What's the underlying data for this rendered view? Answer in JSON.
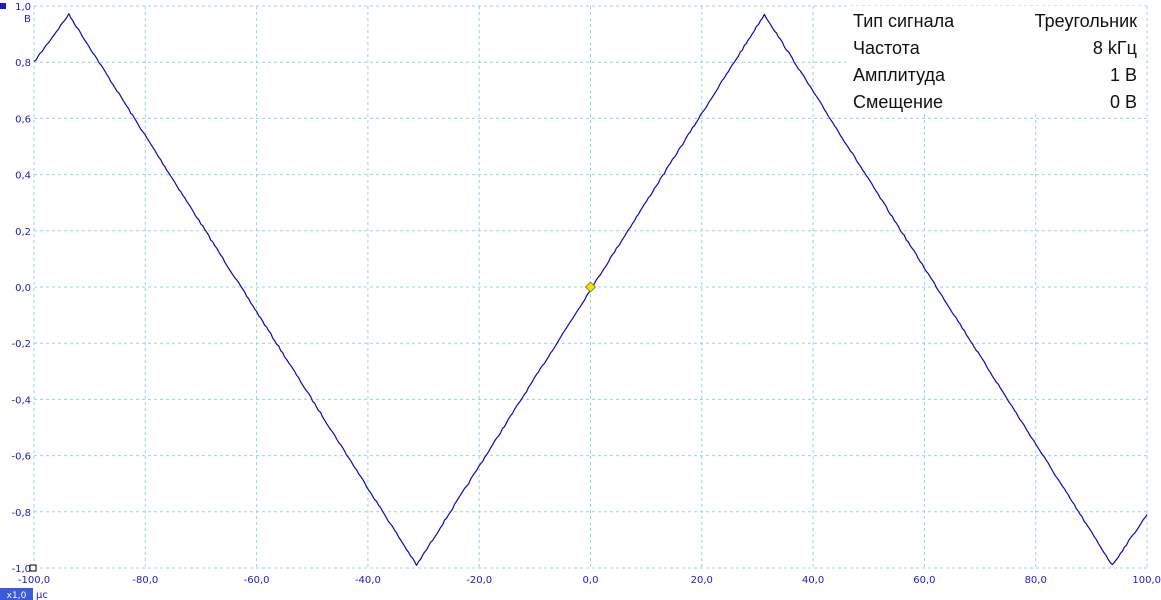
{
  "chart_data": {
    "type": "line",
    "title": "",
    "xlabel": "",
    "ylabel": "",
    "x_unit": "µс",
    "y_unit": "В",
    "xlim": [
      -100,
      100
    ],
    "ylim": [
      -1,
      1
    ],
    "x_ticks": [
      "-100,0",
      "-80,0",
      "-60,0",
      "-40,0",
      "-20,0",
      "0,0",
      "20,0",
      "40,0",
      "60,0",
      "80,0",
      "100,0"
    ],
    "y_ticks": [
      "1,0",
      "0,8",
      "0,6",
      "0,4",
      "0,2",
      "0,0",
      "-0,2",
      "-0,4",
      "-0,6",
      "-0,8",
      "-1,0"
    ],
    "grid": true,
    "series": [
      {
        "x": [
          -100,
          -93.75,
          -31.25,
          31.25,
          93.75,
          100
        ],
        "y": [
          0.8,
          0.97,
          -0.99,
          0.97,
          -0.99,
          -0.81
        ],
        "color": "#0a0ab4"
      }
    ],
    "trigger_marker": {
      "x": 0,
      "y": 0,
      "color": "#f2e600"
    },
    "zoom_badge": "x1,0",
    "info": [
      {
        "label": "Тип сигнала",
        "value": "Треугольник"
      },
      {
        "label": "Частота",
        "value": "8 kГц"
      },
      {
        "label": "Амплитуда",
        "value": "1 В"
      },
      {
        "label": "Смещение",
        "value": "0 В"
      }
    ]
  }
}
